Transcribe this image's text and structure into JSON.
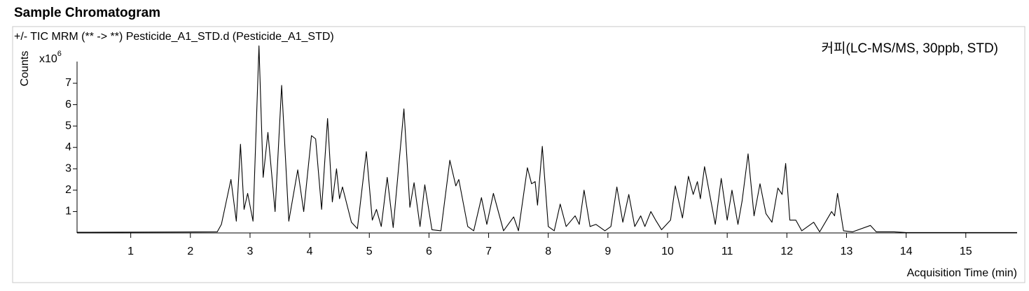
{
  "chart_data": {
    "type": "line",
    "title": "Sample Chromatogram",
    "subtitle": "+/- TIC MRM (** -> **) Pesticide_A1_STD.d (Pesticide_A1_STD)",
    "annotation": "커피(LC-MS/MS, 30ppb, STD)",
    "y_label": "Counts",
    "y_multiplier": {
      "base": "x10",
      "exponent": "6"
    },
    "x_label": "Acquisition Time (min)",
    "xlim": [
      0.1,
      15.86
    ],
    "ylim": [
      0,
      8.8
    ],
    "xticks": [
      1,
      2,
      3,
      4,
      5,
      6,
      7,
      8,
      9,
      10,
      11,
      12,
      13,
      14,
      15
    ],
    "yticks": [
      1,
      2,
      3,
      4,
      5,
      6,
      7
    ],
    "series": [
      {
        "color": "#000000",
        "x": [
          0.1,
          2.45,
          2.52,
          2.6,
          2.68,
          2.77,
          2.84,
          2.9,
          2.96,
          3.05,
          3.15,
          3.22,
          3.3,
          3.42,
          3.53,
          3.65,
          3.8,
          3.9,
          4.03,
          4.1,
          4.2,
          4.3,
          4.38,
          4.45,
          4.5,
          4.55,
          4.7,
          4.8,
          4.95,
          5.05,
          5.12,
          5.2,
          5.3,
          5.4,
          5.58,
          5.68,
          5.75,
          5.85,
          5.93,
          6.05,
          6.2,
          6.35,
          6.45,
          6.5,
          6.65,
          6.75,
          6.88,
          6.97,
          7.08,
          7.25,
          7.42,
          7.5,
          7.65,
          7.72,
          7.78,
          7.82,
          7.9,
          8.0,
          8.1,
          8.2,
          8.3,
          8.45,
          8.52,
          8.6,
          8.7,
          8.8,
          8.95,
          9.05,
          9.15,
          9.25,
          9.35,
          9.45,
          9.55,
          9.62,
          9.72,
          9.8,
          9.9,
          10.05,
          10.13,
          10.25,
          10.35,
          10.43,
          10.5,
          10.55,
          10.62,
          10.72,
          10.8,
          10.9,
          11.0,
          11.08,
          11.18,
          11.25,
          11.35,
          11.45,
          11.55,
          11.65,
          11.75,
          11.85,
          11.92,
          11.98,
          12.05,
          12.15,
          12.25,
          12.45,
          12.55,
          12.75,
          12.8,
          12.85,
          12.95,
          13.1,
          13.4,
          13.5,
          13.8,
          14.0,
          15.86
        ],
        "values": [
          0.03,
          0.05,
          0.4,
          1.45,
          2.5,
          0.55,
          4.15,
          1.1,
          1.85,
          0.55,
          8.75,
          2.6,
          4.7,
          1.0,
          6.9,
          0.55,
          2.95,
          1.0,
          4.55,
          4.4,
          1.1,
          5.35,
          1.45,
          3.0,
          1.6,
          2.15,
          0.5,
          0.2,
          3.8,
          0.6,
          1.1,
          0.3,
          2.6,
          0.25,
          5.8,
          1.2,
          2.35,
          0.3,
          2.25,
          0.15,
          0.1,
          3.4,
          2.2,
          2.5,
          0.3,
          0.1,
          1.65,
          0.4,
          1.85,
          0.1,
          0.75,
          0.1,
          3.05,
          2.3,
          2.4,
          1.3,
          4.05,
          0.3,
          0.1,
          1.35,
          0.3,
          0.8,
          0.4,
          2.0,
          0.3,
          0.4,
          0.1,
          0.3,
          2.15,
          0.5,
          1.8,
          0.3,
          0.8,
          0.3,
          1.0,
          0.6,
          0.15,
          0.6,
          2.2,
          0.7,
          2.65,
          1.8,
          2.4,
          1.6,
          3.1,
          1.6,
          0.4,
          2.55,
          0.6,
          2.0,
          0.4,
          1.5,
          3.7,
          0.8,
          2.3,
          0.9,
          0.5,
          2.1,
          1.8,
          3.25,
          0.6,
          0.6,
          0.1,
          0.5,
          0.05,
          1.0,
          0.8,
          1.85,
          0.1,
          0.05,
          0.35,
          0.05,
          0.05,
          0.02,
          0.02
        ]
      }
    ]
  }
}
